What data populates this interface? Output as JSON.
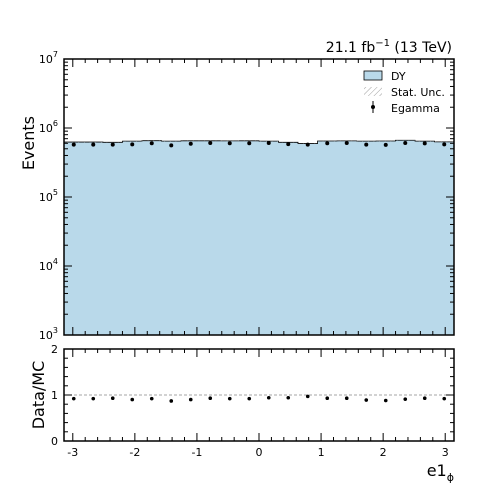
{
  "chart_data": [
    {
      "type": "histogram",
      "title": "",
      "lumi_label": {
        "base": "21.1 fb",
        "exp": "−1",
        "suffix": " (13 TeV)"
      },
      "ylabel": "Events",
      "yscale": "log",
      "ylim": [
        1000,
        10000000
      ],
      "xlim": [
        -3.1416,
        3.1416
      ],
      "y_ticks": [
        {
          "value": 1000,
          "base": "10",
          "exp": "3"
        },
        {
          "value": 10000,
          "base": "10",
          "exp": "4"
        },
        {
          "value": 100000,
          "base": "10",
          "exp": "5"
        },
        {
          "value": 1000000,
          "base": "10",
          "exp": "6"
        },
        {
          "value": 10000000,
          "base": "10",
          "exp": "7"
        }
      ],
      "bin_edges": [
        -3.1416,
        -2.8274,
        -2.5133,
        -2.1991,
        -1.885,
        -1.5708,
        -1.2566,
        -0.9425,
        -0.6283,
        -0.3142,
        0.0,
        0.3142,
        0.6283,
        0.9425,
        1.2566,
        1.5708,
        1.885,
        2.1991,
        2.5133,
        2.8274,
        3.1416
      ],
      "series": [
        {
          "name": "DY",
          "kind": "stacked-histogram",
          "color": "#b9d9ea",
          "values": [
            625000,
            625000,
            620000,
            645000,
            655000,
            645000,
            652000,
            652000,
            650000,
            652000,
            645000,
            620000,
            595000,
            648000,
            650000,
            645000,
            648000,
            665000,
            645000,
            630000
          ]
        },
        {
          "name": "Stat. Unc.",
          "kind": "uncertainty-band",
          "color": "#888888"
        },
        {
          "name": "Egamma",
          "kind": "data-points",
          "color": "#000000",
          "values": [
            575000,
            575000,
            575000,
            580000,
            600000,
            560000,
            590000,
            605000,
            600000,
            600000,
            605000,
            585000,
            575000,
            600000,
            605000,
            575000,
            570000,
            605000,
            598000,
            580000
          ]
        }
      ],
      "legend": {
        "position": "top-right",
        "entries": [
          "DY",
          "Stat. Unc.",
          "Egamma"
        ]
      }
    },
    {
      "type": "ratio",
      "ylabel": "Data/MC",
      "xlabel": {
        "base": "e1",
        "sub": "ϕ"
      },
      "ylim": [
        0,
        2
      ],
      "xlim": [
        -3.1416,
        3.1416
      ],
      "y_ticks": [
        "0",
        "1",
        "2"
      ],
      "x_ticks": [
        "-3",
        "-2",
        "-1",
        "0",
        "1",
        "2",
        "3"
      ],
      "reference_line": 1,
      "values": [
        0.92,
        0.92,
        0.93,
        0.9,
        0.92,
        0.87,
        0.9,
        0.93,
        0.92,
        0.92,
        0.94,
        0.94,
        0.97,
        0.93,
        0.93,
        0.89,
        0.88,
        0.91,
        0.93,
        0.92
      ]
    }
  ]
}
